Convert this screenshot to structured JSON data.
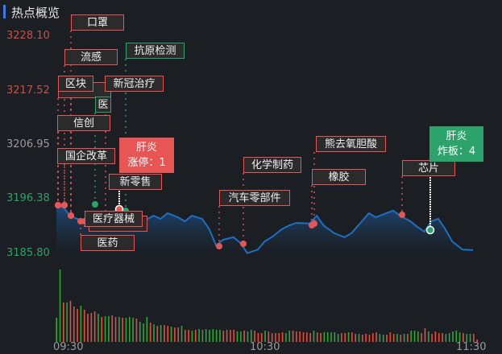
{
  "header": {
    "title": "热点概览"
  },
  "colors": {
    "up": "#e85555",
    "down": "#2ba36a",
    "line": "#1e6fc0",
    "accent": "#3b7be8"
  },
  "y_axis": [
    {
      "label": "3228.10",
      "price": 3228.1,
      "color": "#c8504b"
    },
    {
      "label": "3217.52",
      "price": 3217.52,
      "color": "#c8504b"
    },
    {
      "label": "3206.95",
      "price": 3206.95,
      "color": "#9a9a9a"
    },
    {
      "label": "3196.38",
      "price": 3196.38,
      "color": "#2ba36a"
    },
    {
      "label": "3185.80",
      "price": 3185.8,
      "color": "#2ba36a"
    }
  ],
  "x_axis": [
    "09:30",
    "10:30",
    "11:30"
  ],
  "price_series": [
    [
      "09:30",
      3195.4
    ],
    [
      "09:32",
      3194.9
    ],
    [
      "09:34",
      3193.3
    ],
    [
      "09:36",
      3192.7
    ],
    [
      "09:38",
      3192.2
    ],
    [
      "09:40",
      3192.7
    ],
    [
      "09:43",
      3193.3
    ],
    [
      "09:45",
      3193.0
    ],
    [
      "09:47",
      3194.3
    ],
    [
      "09:48",
      3194.9
    ],
    [
      "09:51",
      3191.8
    ],
    [
      "09:53",
      3191.4
    ],
    [
      "09:55",
      3192.2
    ],
    [
      "09:58",
      3193.3
    ],
    [
      "10:00",
      3192.7
    ],
    [
      "10:02",
      3193.8
    ],
    [
      "10:05",
      3193.0
    ],
    [
      "10:07",
      3192.2
    ],
    [
      "10:09",
      3193.3
    ],
    [
      "10:12",
      3192.7
    ],
    [
      "10:14",
      3190.7
    ],
    [
      "10:16",
      3187.5
    ],
    [
      "10:18",
      3188.6
    ],
    [
      "10:21",
      3189.1
    ],
    [
      "10:23",
      3188.0
    ],
    [
      "10:25",
      3186.0
    ],
    [
      "10:28",
      3186.7
    ],
    [
      "10:30",
      3188.3
    ],
    [
      "10:32",
      3189.1
    ],
    [
      "10:35",
      3190.7
    ],
    [
      "10:37",
      3191.4
    ],
    [
      "10:39",
      3191.9
    ],
    [
      "10:43",
      3191.8
    ],
    [
      "10:45",
      3193.3
    ],
    [
      "10:47",
      3191.4
    ],
    [
      "10:50",
      3189.9
    ],
    [
      "10:53",
      3189.1
    ],
    [
      "10:55",
      3189.9
    ],
    [
      "10:58",
      3192.2
    ],
    [
      "11:00",
      3193.8
    ],
    [
      "11:02",
      3193.0
    ],
    [
      "11:05",
      3193.8
    ],
    [
      "11:07",
      3194.3
    ],
    [
      "11:09",
      3193.3
    ],
    [
      "11:12",
      3192.2
    ],
    [
      "11:14",
      3191.1
    ],
    [
      "11:16",
      3190.2
    ],
    [
      "11:18",
      3192.2
    ],
    [
      "11:20",
      3192.7
    ],
    [
      "11:22",
      3190.7
    ],
    [
      "11:24",
      3188.3
    ],
    [
      "11:27",
      3186.7
    ],
    [
      "11:30",
      3186.6
    ]
  ],
  "volume": [
    [
      30,
      "g"
    ],
    [
      90,
      "g"
    ],
    [
      49,
      "r"
    ],
    [
      49,
      "g"
    ],
    [
      51,
      "r"
    ],
    [
      44,
      "r"
    ],
    [
      41,
      "r"
    ],
    [
      45,
      "g"
    ],
    [
      40,
      "r"
    ],
    [
      35,
      "r"
    ],
    [
      36,
      "r"
    ],
    [
      38,
      "r"
    ],
    [
      35,
      "g"
    ],
    [
      31,
      "r"
    ],
    [
      32,
      "g"
    ],
    [
      32,
      "g"
    ],
    [
      33,
      "r"
    ],
    [
      31,
      "r"
    ],
    [
      31,
      "g"
    ],
    [
      30,
      "r"
    ],
    [
      30,
      "g"
    ],
    [
      31,
      "g"
    ],
    [
      30,
      "g"
    ],
    [
      29,
      "r"
    ],
    [
      25,
      "g"
    ],
    [
      23,
      "g"
    ],
    [
      31,
      "g"
    ],
    [
      24,
      "r"
    ],
    [
      22,
      "g"
    ],
    [
      20,
      "r"
    ],
    [
      21,
      "g"
    ],
    [
      21,
      "r"
    ],
    [
      20,
      "r"
    ],
    [
      19,
      "g"
    ],
    [
      18,
      "r"
    ],
    [
      18,
      "r"
    ],
    [
      20,
      "g"
    ],
    [
      15,
      "r"
    ],
    [
      15,
      "r"
    ],
    [
      14,
      "g"
    ],
    [
      15,
      "r"
    ],
    [
      16,
      "g"
    ],
    [
      15,
      "g"
    ],
    [
      16,
      "g"
    ],
    [
      15,
      "g"
    ],
    [
      16,
      "g"
    ],
    [
      15,
      "g"
    ],
    [
      15,
      "g"
    ],
    [
      14,
      "r"
    ],
    [
      15,
      "r"
    ],
    [
      15,
      "r"
    ],
    [
      15,
      "r"
    ],
    [
      13,
      "g"
    ],
    [
      13,
      "g"
    ],
    [
      14,
      "r"
    ],
    [
      13,
      "g"
    ],
    [
      15,
      "g"
    ],
    [
      14,
      "r"
    ],
    [
      11,
      "r"
    ],
    [
      11,
      "r"
    ],
    [
      14,
      "g"
    ],
    [
      13,
      "r"
    ],
    [
      11,
      "r"
    ],
    [
      11,
      "r"
    ],
    [
      11,
      "r"
    ],
    [
      12,
      "r"
    ],
    [
      11,
      "g"
    ],
    [
      14,
      "g"
    ],
    [
      14,
      "r"
    ],
    [
      13,
      "r"
    ],
    [
      13,
      "r"
    ],
    [
      12,
      "r"
    ],
    [
      12,
      "r"
    ],
    [
      11,
      "r"
    ],
    [
      14,
      "g"
    ],
    [
      12,
      "r"
    ],
    [
      11,
      "r"
    ],
    [
      12,
      "g"
    ],
    [
      12,
      "g"
    ],
    [
      12,
      "g"
    ],
    [
      12,
      "g"
    ],
    [
      10,
      "g"
    ],
    [
      11,
      "r"
    ],
    [
      11,
      "r"
    ],
    [
      12,
      "g"
    ],
    [
      12,
      "r"
    ],
    [
      10,
      "r"
    ],
    [
      10,
      "g"
    ],
    [
      9,
      "r"
    ],
    [
      10,
      "r"
    ],
    [
      9,
      "r"
    ],
    [
      11,
      "r"
    ],
    [
      12,
      "r"
    ],
    [
      10,
      "g"
    ],
    [
      9,
      "g"
    ],
    [
      9,
      "r"
    ],
    [
      12,
      "r"
    ],
    [
      10,
      "r"
    ],
    [
      10,
      "g"
    ],
    [
      9,
      "r"
    ],
    [
      10,
      "g"
    ],
    [
      10,
      "r"
    ],
    [
      14,
      "g"
    ],
    [
      14,
      "g"
    ],
    [
      13,
      "g"
    ],
    [
      11,
      "r"
    ],
    [
      17,
      "r"
    ],
    [
      13,
      "g"
    ],
    [
      10,
      "r"
    ],
    [
      13,
      "r"
    ],
    [
      11,
      "r"
    ],
    [
      11,
      "r"
    ],
    [
      10,
      "g"
    ],
    [
      11,
      "g"
    ],
    [
      13,
      "g"
    ],
    [
      14,
      "g"
    ],
    [
      12,
      "g"
    ],
    [
      11,
      "r"
    ],
    [
      10,
      "g"
    ],
    [
      10,
      "g"
    ],
    [
      10,
      "r"
    ],
    [
      3,
      "r"
    ]
  ],
  "tags": [
    {
      "text": "",
      "type": "up"
    },
    {
      "text": "区块",
      "type": "up"
    },
    {
      "text": "医",
      "type": "down"
    },
    {
      "text": "口罩",
      "type": "up"
    },
    {
      "text": "流感",
      "type": "up"
    },
    {
      "text": "新冠治疗",
      "type": "up"
    },
    {
      "text": "抗原检测",
      "type": "down"
    },
    {
      "text": "信创",
      "type": "up"
    },
    {
      "text": "国企改革",
      "type": "up"
    },
    {
      "text": "新零售",
      "type": "up"
    },
    {
      "text": "",
      "type": "up"
    },
    {
      "text": "医疗器械",
      "type": "up"
    },
    {
      "text": "医药",
      "type": "up"
    },
    {
      "text": "汽车零部件",
      "type": "up"
    },
    {
      "text": "化学制药",
      "type": "up"
    },
    {
      "text": "熊去氧胆酸",
      "type": "up"
    },
    {
      "text": "橡胶",
      "type": "up"
    },
    {
      "text": "芯片",
      "type": "up"
    }
  ],
  "highlights": [
    {
      "name": "肝炎",
      "line": "涨停：1",
      "type": "up"
    },
    {
      "name": "肝炎",
      "line": "炸板：4",
      "type": "down"
    }
  ]
}
